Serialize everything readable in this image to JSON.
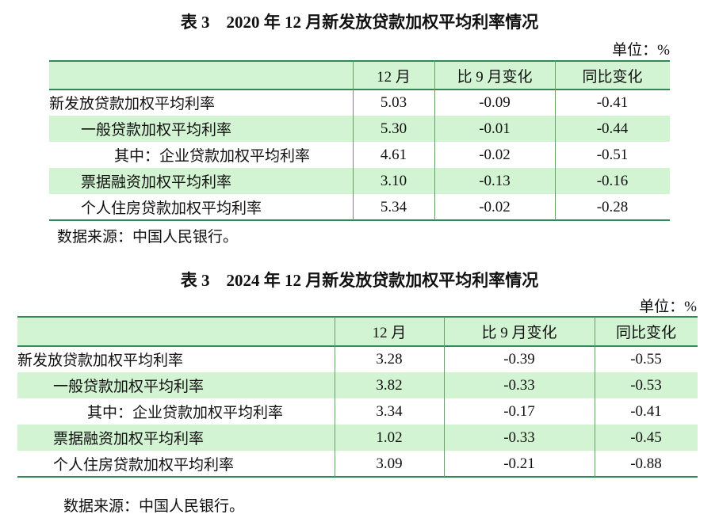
{
  "tables": [
    {
      "title": "表 3　2020 年 12 月新发放贷款加权平均利率情况",
      "unit": "单位：%",
      "header": [
        "12 月",
        "比 9 月变化",
        "同比变化"
      ],
      "rows": [
        [
          "新发放贷款加权平均利率",
          "5.03",
          "-0.09",
          "-0.41"
        ],
        [
          "一般贷款加权平均利率",
          "5.30",
          "-0.01",
          "-0.44"
        ],
        [
          "其中：企业贷款加权平均利率",
          "4.61",
          "-0.02",
          "-0.51"
        ],
        [
          "票据融资加权平均利率",
          "3.10",
          "-0.13",
          "-0.16"
        ],
        [
          "个人住房贷款加权平均利率",
          "5.34",
          "-0.02",
          "-0.28"
        ]
      ],
      "source": "数据来源：中国人民银行。"
    },
    {
      "title": "表 3　2024 年 12 月新发放贷款加权平均利率情况",
      "unit": "单位：%",
      "header": [
        "12 月",
        "比 9 月变化",
        "同比变化"
      ],
      "rows": [
        [
          "新发放贷款加权平均利率",
          "3.28",
          "-0.39",
          "-0.55"
        ],
        [
          "一般贷款加权平均利率",
          "3.82",
          "-0.33",
          "-0.53"
        ],
        [
          "其中：企业贷款加权平均利率",
          "3.34",
          "-0.17",
          "-0.41"
        ],
        [
          "票据融资加权平均利率",
          "1.02",
          "-0.33",
          "-0.45"
        ],
        [
          "个人住房贷款加权平均利率",
          "3.09",
          "-0.21",
          "-0.88"
        ]
      ],
      "source": "数据来源：中国人民银行。"
    }
  ]
}
